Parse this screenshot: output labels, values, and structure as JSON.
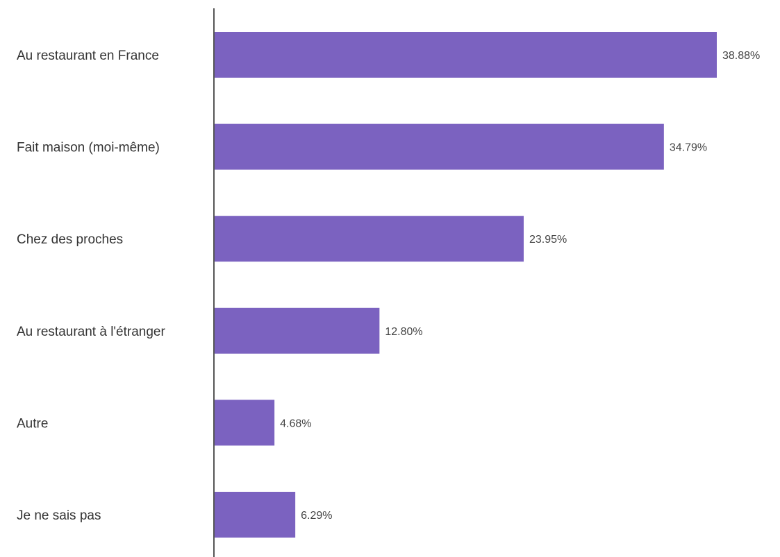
{
  "chart_data": {
    "type": "bar",
    "orientation": "horizontal",
    "categories": [
      "Au restaurant en France",
      "Fait maison (moi-même)",
      "Chez des proches",
      "Au restaurant à l'étranger",
      "Autre",
      "Je ne sais pas"
    ],
    "values": [
      38.88,
      34.79,
      23.95,
      12.8,
      4.68,
      6.29
    ],
    "value_labels": [
      "38.88%",
      "34.79%",
      "23.95%",
      "12.80%",
      "4.68%",
      "6.29%"
    ],
    "title": "",
    "xlabel": "",
    "ylabel": "",
    "xlim": [
      0,
      40
    ],
    "grid": false,
    "bar_color": "#7b62c0",
    "axis_color": "#555555"
  }
}
